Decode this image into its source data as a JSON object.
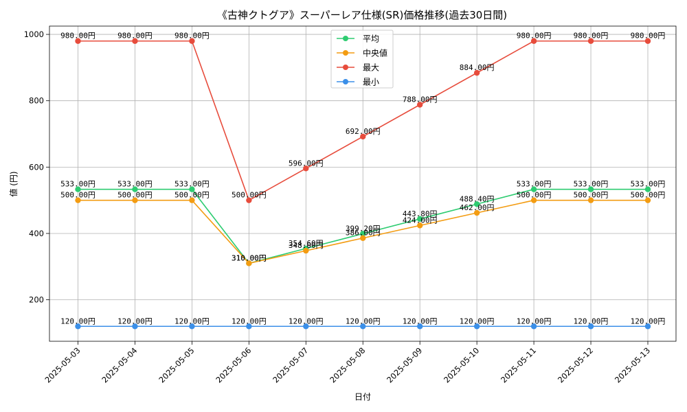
{
  "chart_data": {
    "type": "line",
    "title": "《古神クトグア》スーパーレア仕様(SR)価格推移(過去30日間)",
    "xlabel": "日付",
    "ylabel": "値 (円)",
    "ylim": [
      75,
      1025
    ],
    "yticks": [
      200,
      400,
      600,
      800,
      1000
    ],
    "x": [
      "2025-05-03",
      "2025-05-04",
      "2025-05-05",
      "2025-05-06",
      "2025-05-07",
      "2025-05-08",
      "2025-05-09",
      "2025-05-10",
      "2025-05-11",
      "2025-05-12",
      "2025-05-13"
    ],
    "grid": true,
    "legend_position": "top-center",
    "label_suffix": "円",
    "series": [
      {
        "name": "平均",
        "color": "#2ecc71",
        "values": [
          533.0,
          533.0,
          533.0,
          310.0,
          354.6,
          399.2,
          443.8,
          488.4,
          533.0,
          533.0,
          533.0
        ],
        "labels": [
          "533.00円",
          "533.00円",
          "533.00円",
          "310.00円",
          "354.60円",
          "399.20円",
          "443.80円",
          "488.40円",
          "533.00円",
          "533.00円",
          "533.00円"
        ]
      },
      {
        "name": "中央値",
        "color": "#f39c12",
        "values": [
          500.0,
          500.0,
          500.0,
          310.0,
          348.0,
          386.0,
          424.0,
          462.0,
          500.0,
          500.0,
          500.0
        ],
        "labels": [
          "500.00円",
          "500.00円",
          "500.00円",
          "310.00円",
          "348.00円",
          "386.00円",
          "424.00円",
          "462.00円",
          "500.00円",
          "500.00円",
          "500.00円"
        ]
      },
      {
        "name": "最大",
        "color": "#e74c3c",
        "values": [
          980.0,
          980.0,
          980.0,
          500.0,
          596.0,
          692.0,
          788.0,
          884.0,
          980.0,
          980.0,
          980.0
        ],
        "labels": [
          "980.00円",
          "980.00円",
          "980.00円",
          "500.00円",
          "596.00円",
          "692.00円",
          "788.00円",
          "884.00円",
          "980.00円",
          "980.00円",
          "980.00円"
        ]
      },
      {
        "name": "最小",
        "color": "#3b8fe8",
        "values": [
          120.0,
          120.0,
          120.0,
          120.0,
          120.0,
          120.0,
          120.0,
          120.0,
          120.0,
          120.0,
          120.0
        ],
        "labels": [
          "120.00円",
          "120.00円",
          "120.00円",
          "120.00円",
          "120.00円",
          "120.00円",
          "120.00円",
          "120.00円",
          "120.00円",
          "120.00円",
          "120.00円"
        ]
      }
    ]
  }
}
